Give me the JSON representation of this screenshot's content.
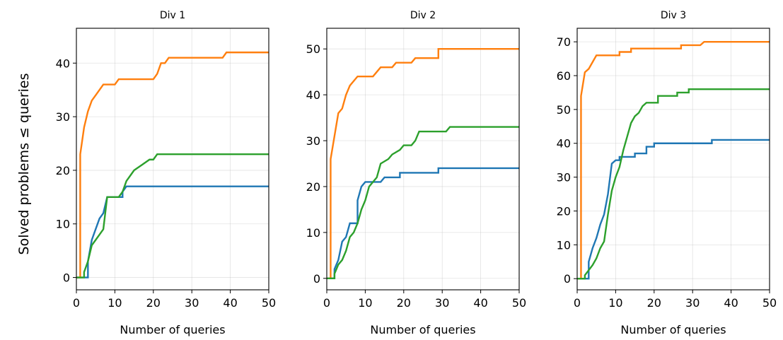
{
  "figure": {
    "ylabel": "Solved problems ≤ queries"
  },
  "colors": {
    "blue": "#1f77b4",
    "orange": "#ff7f0e",
    "green": "#2ca02c"
  },
  "chart_data": [
    {
      "type": "line",
      "step": true,
      "title": "Div 1",
      "xlabel": "Number of queries",
      "xlim": [
        0,
        50
      ],
      "ylim": [
        -2.3,
        46.5
      ],
      "xticks": [
        0,
        10,
        20,
        30,
        40,
        50
      ],
      "yticks": [
        0,
        10,
        20,
        30,
        40
      ],
      "grid": true,
      "series": [
        {
          "color": "blue",
          "points": [
            [
              0,
              0
            ],
            [
              3,
              0
            ],
            [
              3,
              3
            ],
            [
              4,
              7
            ],
            [
              5,
              9
            ],
            [
              6,
              11
            ],
            [
              7,
              12
            ],
            [
              8,
              15
            ],
            [
              12,
              15
            ],
            [
              12,
              16
            ],
            [
              13,
              17
            ],
            [
              50,
              17
            ]
          ]
        },
        {
          "color": "orange",
          "points": [
            [
              0,
              0
            ],
            [
              1,
              0
            ],
            [
              1,
              23
            ],
            [
              2,
              28
            ],
            [
              3,
              31
            ],
            [
              4,
              33
            ],
            [
              5,
              34
            ],
            [
              6,
              35
            ],
            [
              7,
              36
            ],
            [
              8,
              36
            ],
            [
              10,
              36
            ],
            [
              11,
              37
            ],
            [
              20,
              37
            ],
            [
              20,
              37
            ],
            [
              21,
              38
            ],
            [
              22,
              40
            ],
            [
              23,
              40
            ],
            [
              24,
              41
            ],
            [
              38,
              41
            ],
            [
              39,
              42
            ],
            [
              50,
              42
            ]
          ]
        },
        {
          "color": "green",
          "points": [
            [
              0,
              0
            ],
            [
              2,
              0
            ],
            [
              2,
              1
            ],
            [
              3,
              3
            ],
            [
              4,
              6
            ],
            [
              5,
              7
            ],
            [
              6,
              8
            ],
            [
              7,
              9
            ],
            [
              8,
              15
            ],
            [
              11,
              15
            ],
            [
              12,
              16
            ],
            [
              13,
              18
            ],
            [
              14,
              19
            ],
            [
              15,
              20
            ],
            [
              17,
              21
            ],
            [
              19,
              22
            ],
            [
              20,
              22
            ],
            [
              21,
              23
            ],
            [
              50,
              23
            ]
          ]
        }
      ]
    },
    {
      "type": "line",
      "step": true,
      "title": "Div 2",
      "xlabel": "Number of queries",
      "xlim": [
        0,
        50
      ],
      "ylim": [
        -2.5,
        54.5
      ],
      "xticks": [
        0,
        10,
        20,
        30,
        40,
        50
      ],
      "yticks": [
        0,
        10,
        20,
        30,
        40,
        50
      ],
      "grid": true,
      "series": [
        {
          "color": "blue",
          "points": [
            [
              0,
              0
            ],
            [
              2,
              0
            ],
            [
              2,
              2
            ],
            [
              3,
              4
            ],
            [
              4,
              8
            ],
            [
              5,
              9
            ],
            [
              6,
              12
            ],
            [
              8,
              12
            ],
            [
              8,
              17
            ],
            [
              9,
              20
            ],
            [
              10,
              21
            ],
            [
              12,
              21
            ],
            [
              14,
              21
            ],
            [
              15,
              22
            ],
            [
              19,
              22
            ],
            [
              19,
              23
            ],
            [
              29,
              23
            ],
            [
              29,
              24
            ],
            [
              50,
              24
            ]
          ]
        },
        {
          "color": "orange",
          "points": [
            [
              0,
              0
            ],
            [
              1,
              0
            ],
            [
              1,
              26
            ],
            [
              2,
              31
            ],
            [
              3,
              36
            ],
            [
              4,
              37
            ],
            [
              5,
              40
            ],
            [
              6,
              42
            ],
            [
              7,
              43
            ],
            [
              8,
              44
            ],
            [
              12,
              44
            ],
            [
              13,
              45
            ],
            [
              14,
              46
            ],
            [
              17,
              46
            ],
            [
              18,
              47
            ],
            [
              22,
              47
            ],
            [
              23,
              48
            ],
            [
              29,
              48
            ],
            [
              29,
              50
            ],
            [
              50,
              50
            ]
          ]
        },
        {
          "color": "green",
          "points": [
            [
              0,
              0
            ],
            [
              2,
              0
            ],
            [
              2,
              1
            ],
            [
              3,
              3
            ],
            [
              4,
              4
            ],
            [
              5,
              6
            ],
            [
              6,
              9
            ],
            [
              7,
              10
            ],
            [
              8,
              12
            ],
            [
              9,
              15
            ],
            [
              10,
              17
            ],
            [
              11,
              20
            ],
            [
              12,
              21
            ],
            [
              13,
              22
            ],
            [
              14,
              25
            ],
            [
              16,
              26
            ],
            [
              17,
              27
            ],
            [
              19,
              28
            ],
            [
              20,
              29
            ],
            [
              22,
              29
            ],
            [
              23,
              30
            ],
            [
              24,
              32
            ],
            [
              31,
              32
            ],
            [
              32,
              33
            ],
            [
              50,
              33
            ]
          ]
        }
      ]
    },
    {
      "type": "line",
      "step": true,
      "title": "Div 3",
      "xlabel": "Number of queries",
      "xlim": [
        0,
        50
      ],
      "ylim": [
        -3.3,
        74
      ],
      "xticks": [
        0,
        10,
        20,
        30,
        40,
        50
      ],
      "yticks": [
        0,
        10,
        20,
        30,
        40,
        50,
        60,
        70
      ],
      "grid": true,
      "series": [
        {
          "color": "blue",
          "points": [
            [
              0,
              0
            ],
            [
              3,
              0
            ],
            [
              3,
              5
            ],
            [
              4,
              9
            ],
            [
              5,
              12
            ],
            [
              6,
              16
            ],
            [
              7,
              19
            ],
            [
              8,
              25
            ],
            [
              9,
              34
            ],
            [
              10,
              35
            ],
            [
              11,
              35
            ],
            [
              11,
              36
            ],
            [
              15,
              36
            ],
            [
              15,
              37
            ],
            [
              18,
              37
            ],
            [
              18,
              39
            ],
            [
              20,
              39
            ],
            [
              20,
              40
            ],
            [
              35,
              40
            ],
            [
              35,
              41
            ],
            [
              50,
              41
            ]
          ]
        },
        {
          "color": "orange",
          "points": [
            [
              0,
              0
            ],
            [
              1,
              0
            ],
            [
              1,
              54
            ],
            [
              2,
              61
            ],
            [
              3,
              62
            ],
            [
              4,
              64
            ],
            [
              5,
              66
            ],
            [
              11,
              66
            ],
            [
              11,
              67
            ],
            [
              14,
              67
            ],
            [
              14,
              68
            ],
            [
              27,
              68
            ],
            [
              27,
              69
            ],
            [
              32,
              69
            ],
            [
              33,
              70
            ],
            [
              50,
              70
            ]
          ]
        },
        {
          "color": "green",
          "points": [
            [
              0,
              0
            ],
            [
              2,
              0
            ],
            [
              2,
              1
            ],
            [
              4,
              4
            ],
            [
              5,
              6
            ],
            [
              6,
              9
            ],
            [
              7,
              11
            ],
            [
              8,
              19
            ],
            [
              9,
              26
            ],
            [
              10,
              30
            ],
            [
              11,
              33
            ],
            [
              12,
              38
            ],
            [
              13,
              42
            ],
            [
              14,
              46
            ],
            [
              15,
              48
            ],
            [
              16,
              49
            ],
            [
              17,
              51
            ],
            [
              18,
              52
            ],
            [
              21,
              52
            ],
            [
              21,
              54
            ],
            [
              26,
              54
            ],
            [
              26,
              55
            ],
            [
              29,
              55
            ],
            [
              29,
              56
            ],
            [
              50,
              56
            ]
          ]
        }
      ]
    }
  ]
}
